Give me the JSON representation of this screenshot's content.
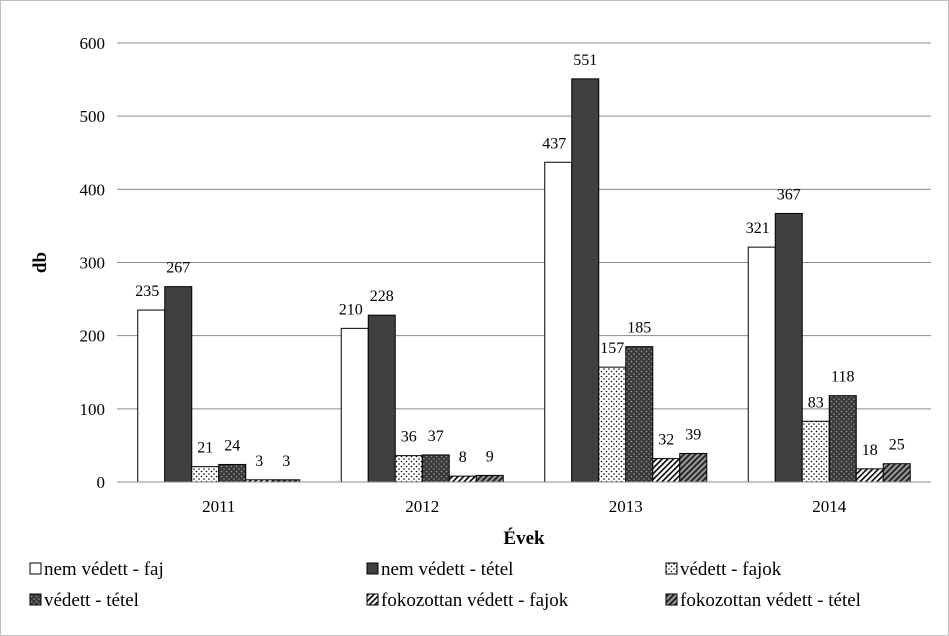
{
  "chart_data": {
    "type": "bar",
    "title": "",
    "xlabel": "Évek",
    "ylabel": "db",
    "ylim": [
      0,
      600
    ],
    "yticks": [
      0,
      100,
      200,
      300,
      400,
      500,
      600
    ],
    "categories": [
      "2011",
      "2012",
      "2013",
      "2014"
    ],
    "grid": true,
    "legend_position": "bottom",
    "series": [
      {
        "name": "nem védett - faj",
        "values": [
          235,
          210,
          437,
          321
        ],
        "fill": "#ffffff",
        "pattern": "none"
      },
      {
        "name": "nem védett - tétel",
        "values": [
          267,
          228,
          551,
          367
        ],
        "fill": "#404040",
        "pattern": "none"
      },
      {
        "name": "védett - fajok",
        "values": [
          21,
          36,
          157,
          83
        ],
        "fill": "#ffffff",
        "pattern": "dots"
      },
      {
        "name": "védett - tétel",
        "values": [
          24,
          37,
          185,
          118
        ],
        "fill": "#404040",
        "pattern": "dots"
      },
      {
        "name": "fokozottan védett - fajok",
        "values": [
          3,
          8,
          32,
          18
        ],
        "fill": "#ffffff",
        "pattern": "diagonal"
      },
      {
        "name": "fokozottan védett - tétel",
        "values": [
          3,
          9,
          39,
          25
        ],
        "fill": "#5a5a5a",
        "pattern": "diagonal"
      }
    ]
  }
}
